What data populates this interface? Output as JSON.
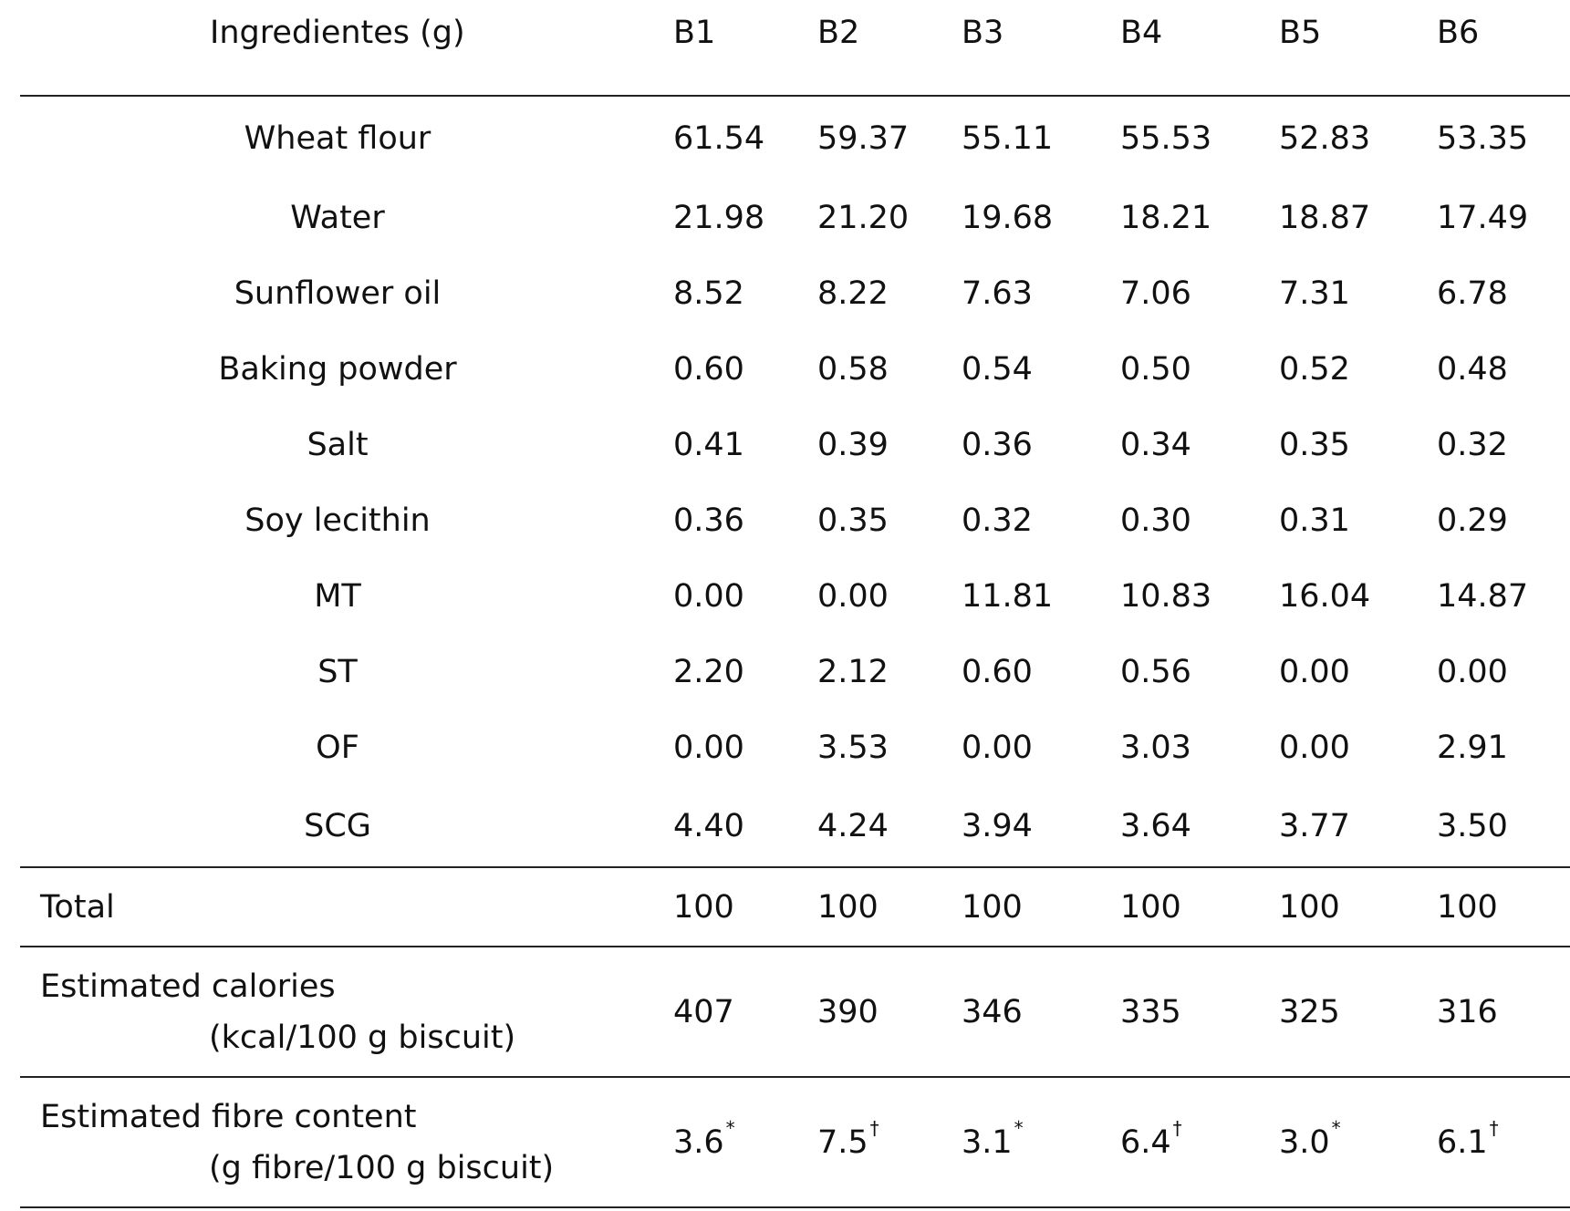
{
  "header": {
    "label": "Ingredientes (g)",
    "columns": [
      "B1",
      "B2",
      "B3",
      "B4",
      "B5",
      "B6"
    ]
  },
  "ingredients": [
    {
      "name": "Wheat flour",
      "values": [
        "61.54",
        "59.37",
        "55.11",
        "55.53",
        "52.83",
        "53.35"
      ]
    },
    {
      "name": "Water",
      "values": [
        "21.98",
        "21.20",
        "19.68",
        "18.21",
        "18.87",
        "17.49"
      ]
    },
    {
      "name": "Sunflower oil",
      "values": [
        "8.52",
        "8.22",
        "7.63",
        "7.06",
        "7.31",
        "6.78"
      ]
    },
    {
      "name": "Baking powder",
      "values": [
        "0.60",
        "0.58",
        "0.54",
        "0.50",
        "0.52",
        "0.48"
      ]
    },
    {
      "name": "Salt",
      "values": [
        "0.41",
        "0.39",
        "0.36",
        "0.34",
        "0.35",
        "0.32"
      ]
    },
    {
      "name": "Soy lecithin",
      "values": [
        "0.36",
        "0.35",
        "0.32",
        "0.30",
        "0.31",
        "0.29"
      ]
    },
    {
      "name": "MT",
      "values": [
        "0.00",
        "0.00",
        "11.81",
        "10.83",
        "16.04",
        "14.87"
      ]
    },
    {
      "name": "ST",
      "values": [
        "2.20",
        "2.12",
        "0.60",
        "0.56",
        "0.00",
        "0.00"
      ]
    },
    {
      "name": "OF",
      "values": [
        "0.00",
        "3.53",
        "0.00",
        "3.03",
        "0.00",
        "2.91"
      ]
    },
    {
      "name": "SCG",
      "values": [
        "4.40",
        "4.24",
        "3.94",
        "3.64",
        "3.77",
        "3.50"
      ]
    }
  ],
  "total": {
    "label": "Total",
    "values": [
      "100",
      "100",
      "100",
      "100",
      "100",
      "100"
    ]
  },
  "calories": {
    "label_line1": "Estimated calories",
    "label_line2": "(kcal/100 g biscuit)",
    "values": [
      "407",
      "390",
      "346",
      "335",
      "325",
      "316"
    ]
  },
  "fibre": {
    "label_line1": "Estimated fibre content",
    "label_line2": "(g fibre/100 g biscuit)",
    "values": [
      "3.6",
      "7.5",
      "3.1",
      "6.4",
      "3.0",
      "6.1"
    ],
    "marks": [
      "*",
      "†",
      "*",
      "†",
      "*",
      "†"
    ]
  }
}
